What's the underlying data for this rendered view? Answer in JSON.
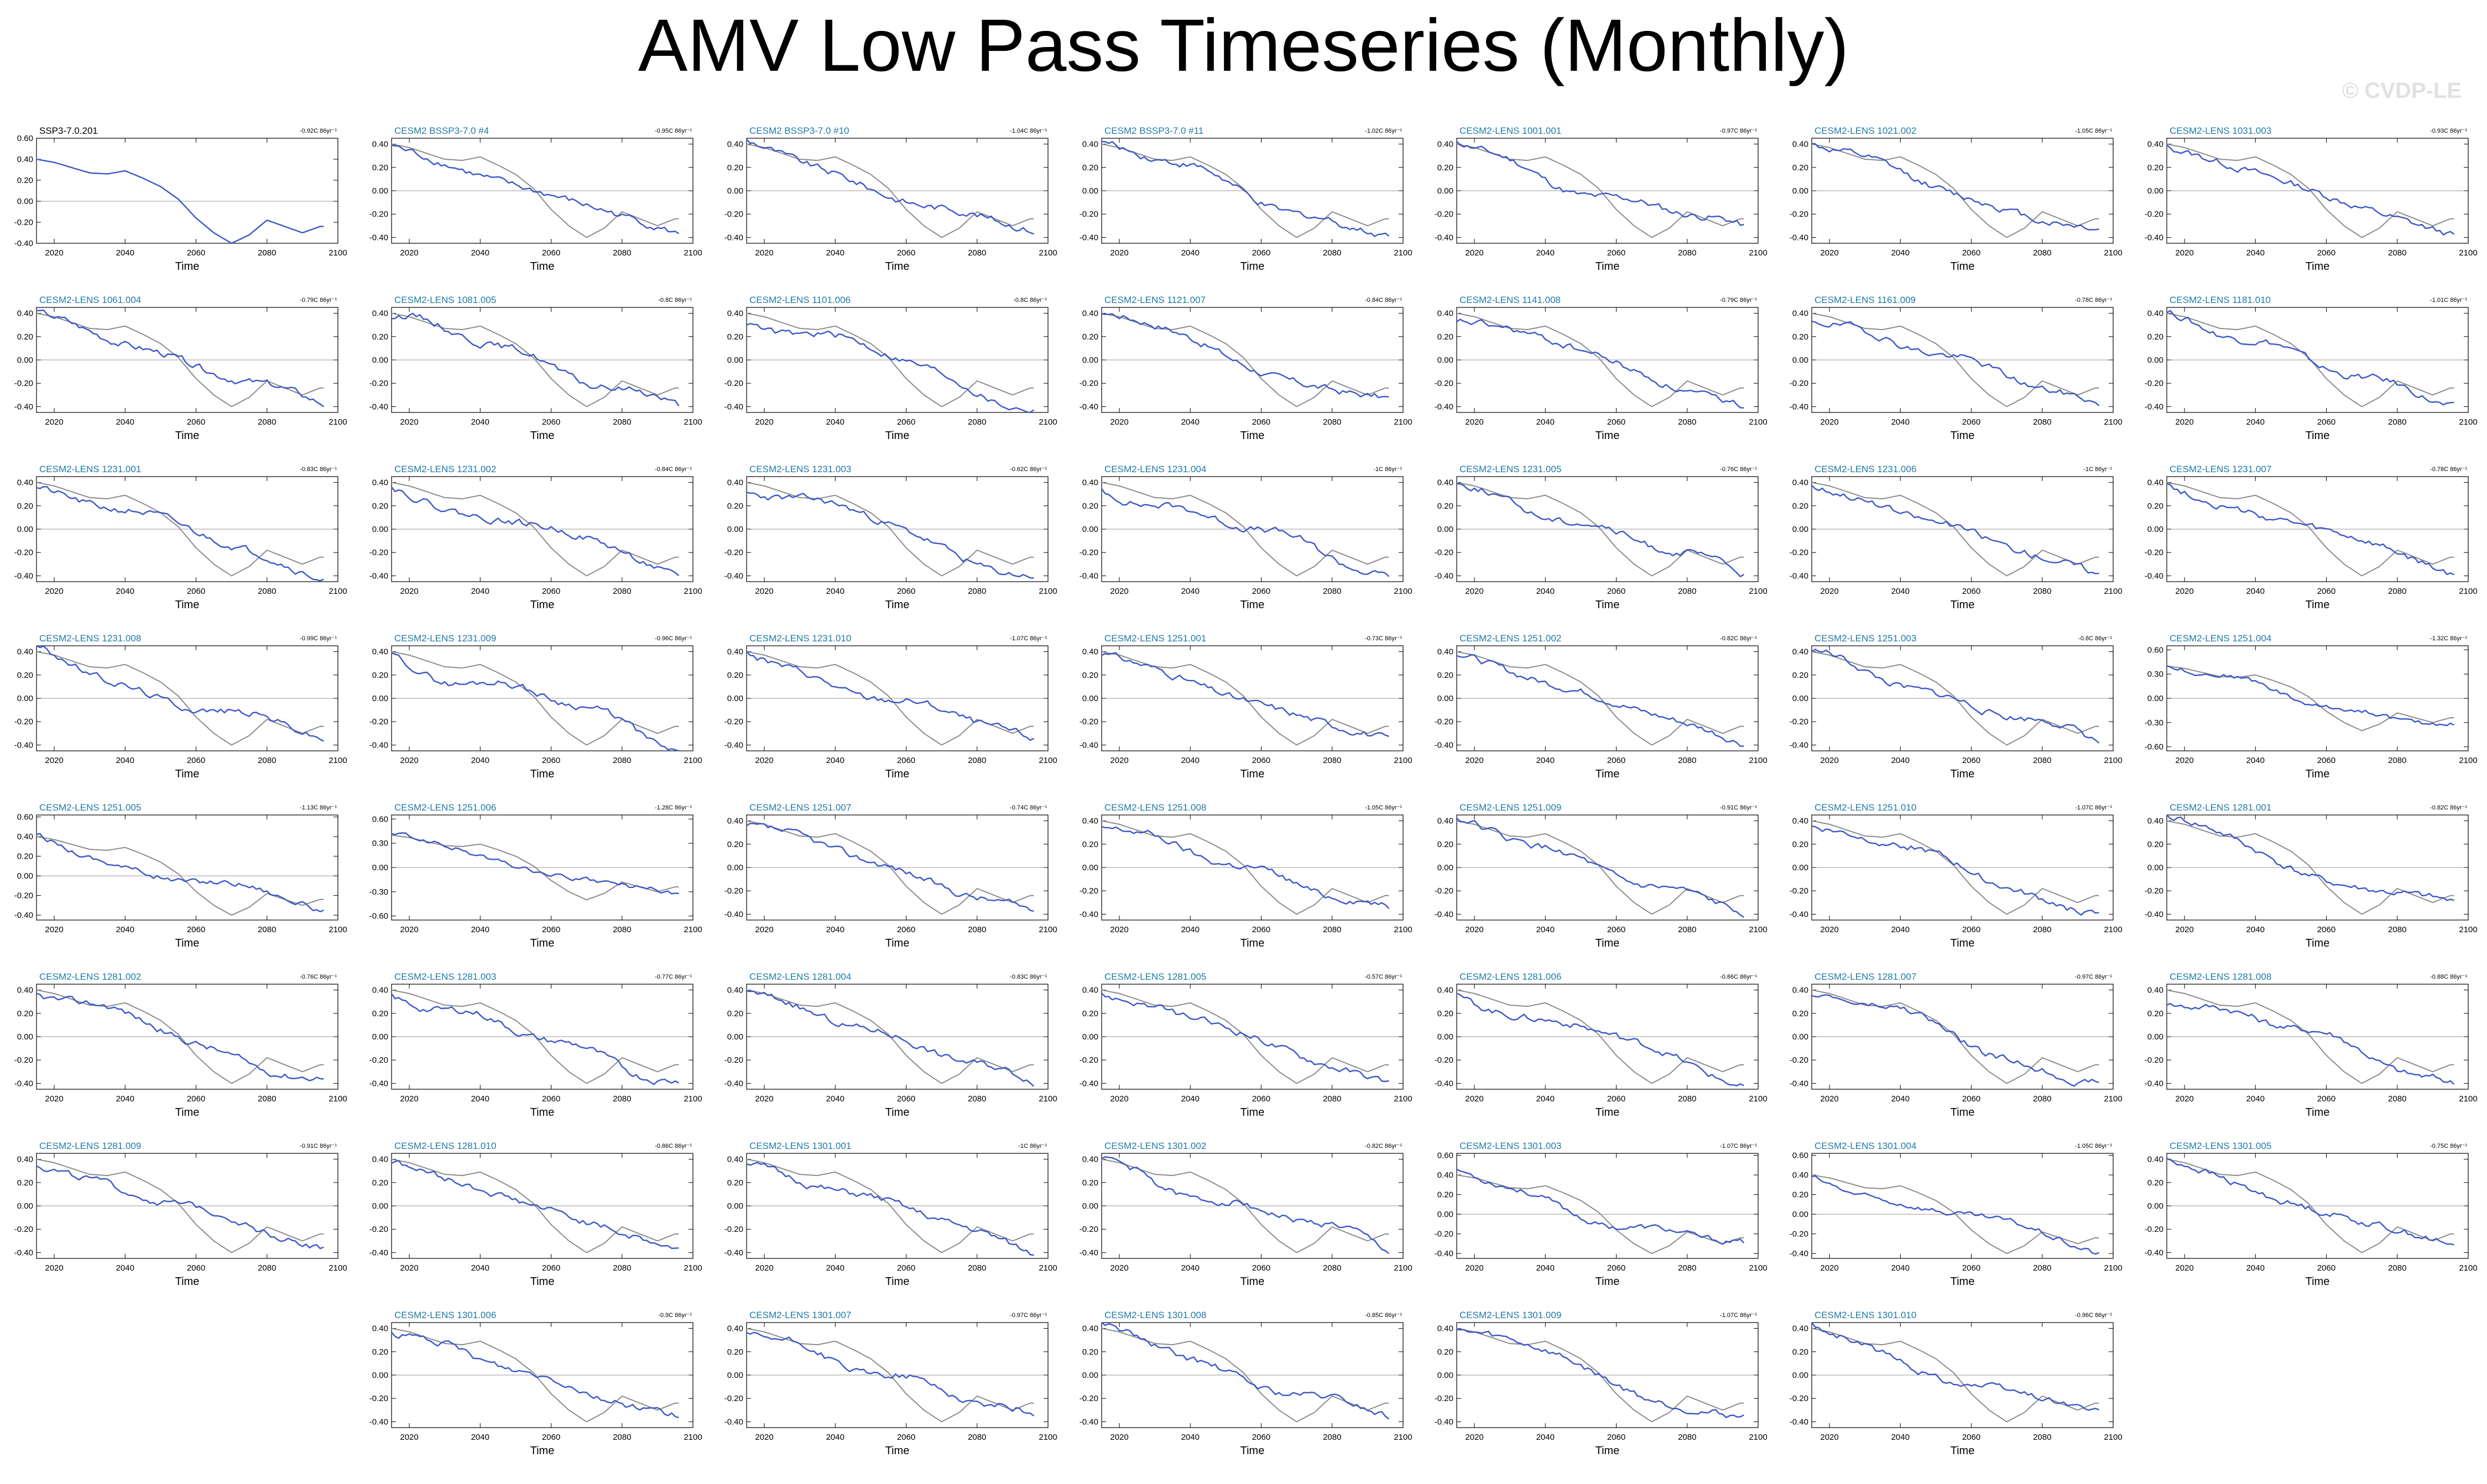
{
  "title": "AMV Low Pass Timeseries (Monthly)",
  "watermark": "© CVDP-LE",
  "colors": {
    "member_line": "#3a56c9",
    "obs_line": "#8c8c8c",
    "zero_line": "#9a9a9a",
    "title_member": "#1f7aa6",
    "title_obs": "#000000"
  },
  "chart_data": {
    "type": "line",
    "xlabel": "Time",
    "xlim": [
      2015,
      2100
    ],
    "x_ticks": [
      2020,
      2040,
      2060,
      2080,
      2100
    ],
    "series_note": "blue = ensemble member, gray = reference run SSP3-7.0.201",
    "panels": [
      {
        "title": "SSP3-7.0.201",
        "trend": "-0.92C 86yr⁻¹",
        "y_ticks": [
          "0.60",
          "0.40",
          "0.20",
          "0.00",
          "-0.20",
          "-0.40"
        ],
        "ylim": [
          -0.4,
          0.6
        ],
        "is_reference": true
      },
      {
        "title": "CESM2 BSSP3-7.0 #4",
        "trend": "-0.95C 86yr⁻¹",
        "y_ticks": [
          "0.40",
          "0.20",
          "0.00",
          "-0.20",
          "-0.40"
        ],
        "ylim": [
          -0.45,
          0.45
        ]
      },
      {
        "title": "CESM2 BSSP3-7.0 #10",
        "trend": "-1.04C 86yr⁻¹",
        "y_ticks": [
          "0.40",
          "0.20",
          "0.00",
          "-0.20",
          "-0.40"
        ],
        "ylim": [
          -0.45,
          0.45
        ]
      },
      {
        "title": "CESM2 BSSP3-7.0 #11",
        "trend": "-1.02C 86yr⁻¹",
        "y_ticks": [
          "0.40",
          "0.20",
          "0.00",
          "-0.20",
          "-0.40"
        ],
        "ylim": [
          -0.45,
          0.45
        ]
      },
      {
        "title": "CESM2-LENS 1001.001",
        "trend": "-0.97C 86yr⁻¹",
        "y_ticks": [
          "0.40",
          "0.20",
          "0.00",
          "-0.20",
          "-0.40"
        ],
        "ylim": [
          -0.45,
          0.45
        ]
      },
      {
        "title": "CESM2-LENS 1021.002",
        "trend": "-1.05C 86yr⁻¹",
        "y_ticks": [
          "0.40",
          "0.20",
          "0.00",
          "-0.20",
          "-0.40"
        ],
        "ylim": [
          -0.45,
          0.45
        ]
      },
      {
        "title": "CESM2-LENS 1031.003",
        "trend": "-0.93C 86yr⁻¹",
        "y_ticks": [
          "0.40",
          "0.20",
          "0.00",
          "-0.20",
          "-0.40"
        ],
        "ylim": [
          -0.45,
          0.45
        ]
      },
      {
        "title": "CESM2-LENS 1061.004",
        "trend": "-0.79C 86yr⁻¹",
        "y_ticks": [
          "0.40",
          "0.20",
          "0.00",
          "-0.20",
          "-0.40"
        ],
        "ylim": [
          -0.45,
          0.45
        ]
      },
      {
        "title": "CESM2-LENS 1081.005",
        "trend": "-0.8C 86yr⁻¹",
        "y_ticks": [
          "0.40",
          "0.20",
          "0.00",
          "-0.20",
          "-0.40"
        ],
        "ylim": [
          -0.45,
          0.45
        ]
      },
      {
        "title": "CESM2-LENS 1101.006",
        "trend": "-0.8C 86yr⁻¹",
        "y_ticks": [
          "0.40",
          "0.20",
          "0.00",
          "-0.20",
          "-0.40"
        ],
        "ylim": [
          -0.45,
          0.45
        ]
      },
      {
        "title": "CESM2-LENS 1121.007",
        "trend": "-0.84C 86yr⁻¹",
        "y_ticks": [
          "0.40",
          "0.20",
          "0.00",
          "-0.20",
          "-0.40"
        ],
        "ylim": [
          -0.45,
          0.45
        ]
      },
      {
        "title": "CESM2-LENS 1141.008",
        "trend": "-0.79C 86yr⁻¹",
        "y_ticks": [
          "0.40",
          "0.20",
          "0.00",
          "-0.20",
          "-0.40"
        ],
        "ylim": [
          -0.45,
          0.45
        ]
      },
      {
        "title": "CESM2-LENS 1161.009",
        "trend": "-0.78C 86yr⁻¹",
        "y_ticks": [
          "0.40",
          "0.20",
          "0.00",
          "-0.20",
          "-0.40"
        ],
        "ylim": [
          -0.45,
          0.45
        ]
      },
      {
        "title": "CESM2-LENS 1181.010",
        "trend": "-1.01C 86yr⁻¹",
        "y_ticks": [
          "0.40",
          "0.20",
          "0.00",
          "-0.20",
          "-0.40"
        ],
        "ylim": [
          -0.45,
          0.45
        ]
      },
      {
        "title": "CESM2-LENS 1231.001",
        "trend": "-0.83C 86yr⁻¹",
        "y_ticks": [
          "0.40",
          "0.20",
          "0.00",
          "-0.20",
          "-0.40"
        ],
        "ylim": [
          -0.45,
          0.45
        ]
      },
      {
        "title": "CESM2-LENS 1231.002",
        "trend": "-0.84C 86yr⁻¹",
        "y_ticks": [
          "0.40",
          "0.20",
          "0.00",
          "-0.20",
          "-0.40"
        ],
        "ylim": [
          -0.45,
          0.45
        ]
      },
      {
        "title": "CESM2-LENS 1231.003",
        "trend": "-0.62C 86yr⁻¹",
        "y_ticks": [
          "0.40",
          "0.20",
          "0.00",
          "-0.20",
          "-0.40"
        ],
        "ylim": [
          -0.45,
          0.45
        ]
      },
      {
        "title": "CESM2-LENS 1231.004",
        "trend": "-1C 86yr⁻¹",
        "y_ticks": [
          "0.40",
          "0.20",
          "0.00",
          "-0.20",
          "-0.40"
        ],
        "ylim": [
          -0.45,
          0.45
        ]
      },
      {
        "title": "CESM2-LENS 1231.005",
        "trend": "-0.76C 86yr⁻¹",
        "y_ticks": [
          "0.40",
          "0.20",
          "0.00",
          "-0.20",
          "-0.40"
        ],
        "ylim": [
          -0.45,
          0.45
        ]
      },
      {
        "title": "CESM2-LENS 1231.006",
        "trend": "-1C 86yr⁻¹",
        "y_ticks": [
          "0.40",
          "0.20",
          "0.00",
          "-0.20",
          "-0.40"
        ],
        "ylim": [
          -0.45,
          0.45
        ]
      },
      {
        "title": "CESM2-LENS 1231.007",
        "trend": "-0.78C 86yr⁻¹",
        "y_ticks": [
          "0.40",
          "0.20",
          "0.00",
          "-0.20",
          "-0.40"
        ],
        "ylim": [
          -0.45,
          0.45
        ]
      },
      {
        "title": "CESM2-LENS 1231.008",
        "trend": "-0.99C 86yr⁻¹",
        "y_ticks": [
          "0.40",
          "0.20",
          "0.00",
          "-0.20",
          "-0.40"
        ],
        "ylim": [
          -0.45,
          0.45
        ]
      },
      {
        "title": "CESM2-LENS 1231.009",
        "trend": "-0.96C 86yr⁻¹",
        "y_ticks": [
          "0.40",
          "0.20",
          "0.00",
          "-0.20",
          "-0.40"
        ],
        "ylim": [
          -0.45,
          0.45
        ]
      },
      {
        "title": "CESM2-LENS 1231.010",
        "trend": "-1.07C 86yr⁻¹",
        "y_ticks": [
          "0.40",
          "0.20",
          "0.00",
          "-0.20",
          "-0.40"
        ],
        "ylim": [
          -0.45,
          0.45
        ]
      },
      {
        "title": "CESM2-LENS 1251.001",
        "trend": "-0.73C 86yr⁻¹",
        "y_ticks": [
          "0.40",
          "0.20",
          "0.00",
          "-0.20",
          "-0.40"
        ],
        "ylim": [
          -0.45,
          0.45
        ]
      },
      {
        "title": "CESM2-LENS 1251.002",
        "trend": "-0.82C 86yr⁻¹",
        "y_ticks": [
          "0.40",
          "0.20",
          "0.00",
          "-0.20",
          "-0.40"
        ],
        "ylim": [
          -0.45,
          0.45
        ]
      },
      {
        "title": "CESM2-LENS 1251.003",
        "trend": "-0.8C 86yr⁻¹",
        "y_ticks": [
          "0.40",
          "0.20",
          "0.00",
          "-0.20",
          "-0.40"
        ],
        "ylim": [
          -0.45,
          0.45
        ]
      },
      {
        "title": "CESM2-LENS 1251.004",
        "trend": "-1.32C 86yr⁻¹",
        "y_ticks": [
          "0.60",
          "0.30",
          "0.00",
          "-0.30",
          "-0.60"
        ],
        "ylim": [
          -0.65,
          0.65
        ]
      },
      {
        "title": "CESM2-LENS 1251.005",
        "trend": "-1.13C 86yr⁻¹",
        "y_ticks": [
          "0.60",
          "0.40",
          "0.20",
          "0.00",
          "-0.20",
          "-0.40"
        ],
        "ylim": [
          -0.45,
          0.62
        ]
      },
      {
        "title": "CESM2-LENS 1251.006",
        "trend": "-1.28C 86yr⁻¹",
        "y_ticks": [
          "0.60",
          "0.30",
          "0.00",
          "-0.30",
          "-0.60"
        ],
        "ylim": [
          -0.65,
          0.65
        ]
      },
      {
        "title": "CESM2-LENS 1251.007",
        "trend": "-0.74C 86yr⁻¹",
        "y_ticks": [
          "0.40",
          "0.20",
          "0.00",
          "-0.20",
          "-0.40"
        ],
        "ylim": [
          -0.45,
          0.45
        ]
      },
      {
        "title": "CESM2-LENS 1251.008",
        "trend": "-1.05C 86yr⁻¹",
        "y_ticks": [
          "0.40",
          "0.20",
          "0.00",
          "-0.20",
          "-0.40"
        ],
        "ylim": [
          -0.45,
          0.45
        ]
      },
      {
        "title": "CESM2-LENS 1251.009",
        "trend": "-0.91C 86yr⁻¹",
        "y_ticks": [
          "0.40",
          "0.20",
          "0.00",
          "-0.20",
          "-0.40"
        ],
        "ylim": [
          -0.45,
          0.45
        ]
      },
      {
        "title": "CESM2-LENS 1251.010",
        "trend": "-1.07C 86yr⁻¹",
        "y_ticks": [
          "0.40",
          "0.20",
          "0.00",
          "-0.20",
          "-0.40"
        ],
        "ylim": [
          -0.45,
          0.45
        ]
      },
      {
        "title": "CESM2-LENS 1281.001",
        "trend": "-0.82C 86yr⁻¹",
        "y_ticks": [
          "0.40",
          "0.20",
          "0.00",
          "-0.20",
          "-0.40"
        ],
        "ylim": [
          -0.45,
          0.45
        ]
      },
      {
        "title": "CESM2-LENS 1281.002",
        "trend": "-0.76C 86yr⁻¹",
        "y_ticks": [
          "0.40",
          "0.20",
          "0.00",
          "-0.20",
          "-0.40"
        ],
        "ylim": [
          -0.45,
          0.45
        ]
      },
      {
        "title": "CESM2-LENS 1281.003",
        "trend": "-0.77C 86yr⁻¹",
        "y_ticks": [
          "0.40",
          "0.20",
          "0.00",
          "-0.20",
          "-0.40"
        ],
        "ylim": [
          -0.45,
          0.45
        ]
      },
      {
        "title": "CESM2-LENS 1281.004",
        "trend": "-0.83C 86yr⁻¹",
        "y_ticks": [
          "0.40",
          "0.20",
          "0.00",
          "-0.20",
          "-0.40"
        ],
        "ylim": [
          -0.45,
          0.45
        ]
      },
      {
        "title": "CESM2-LENS 1281.005",
        "trend": "-0.57C 86yr⁻¹",
        "y_ticks": [
          "0.40",
          "0.20",
          "0.00",
          "-0.20",
          "-0.40"
        ],
        "ylim": [
          -0.45,
          0.45
        ]
      },
      {
        "title": "CESM2-LENS 1281.006",
        "trend": "-0.86C 86yr⁻¹",
        "y_ticks": [
          "0.40",
          "0.20",
          "0.00",
          "-0.20",
          "-0.40"
        ],
        "ylim": [
          -0.45,
          0.45
        ]
      },
      {
        "title": "CESM2-LENS 1281.007",
        "trend": "-0.97C 86yr⁻¹",
        "y_ticks": [
          "0.40",
          "0.20",
          "0.00",
          "-0.20",
          "-0.40"
        ],
        "ylim": [
          -0.45,
          0.45
        ]
      },
      {
        "title": "CESM2-LENS 1281.008",
        "trend": "-0.88C 86yr⁻¹",
        "y_ticks": [
          "0.40",
          "0.20",
          "0.00",
          "-0.20",
          "-0.40"
        ],
        "ylim": [
          -0.45,
          0.45
        ]
      },
      {
        "title": "CESM2-LENS 1281.009",
        "trend": "-0.91C 86yr⁻¹",
        "y_ticks": [
          "0.40",
          "0.20",
          "0.00",
          "-0.20",
          "-0.40"
        ],
        "ylim": [
          -0.45,
          0.45
        ]
      },
      {
        "title": "CESM2-LENS 1281.010",
        "trend": "-0.86C 86yr⁻¹",
        "y_ticks": [
          "0.40",
          "0.20",
          "0.00",
          "-0.20",
          "-0.40"
        ],
        "ylim": [
          -0.45,
          0.45
        ]
      },
      {
        "title": "CESM2-LENS 1301.001",
        "trend": "-1C 86yr⁻¹",
        "y_ticks": [
          "0.40",
          "0.20",
          "0.00",
          "-0.20",
          "-0.40"
        ],
        "ylim": [
          -0.45,
          0.45
        ]
      },
      {
        "title": "CESM2-LENS 1301.002",
        "trend": "-0.82C 86yr⁻¹",
        "y_ticks": [
          "0.40",
          "0.20",
          "0.00",
          "-0.20",
          "-0.40"
        ],
        "ylim": [
          -0.45,
          0.45
        ]
      },
      {
        "title": "CESM2-LENS 1301.003",
        "trend": "-1.07C 86yr⁻¹",
        "y_ticks": [
          "0.60",
          "0.40",
          "0.20",
          "0.00",
          "-0.20",
          "-0.40"
        ],
        "ylim": [
          -0.45,
          0.62
        ]
      },
      {
        "title": "CESM2-LENS 1301.004",
        "trend": "-1.05C 86yr⁻¹",
        "y_ticks": [
          "0.60",
          "0.40",
          "0.20",
          "0.00",
          "-0.20",
          "-0.40"
        ],
        "ylim": [
          -0.45,
          0.62
        ]
      },
      {
        "title": "CESM2-LENS 1301.005",
        "trend": "-0.75C 86yr⁻¹",
        "y_ticks": [
          "0.40",
          "0.20",
          "0.00",
          "-0.20",
          "-0.40"
        ],
        "ylim": [
          -0.45,
          0.45
        ]
      },
      {
        "title": "CESM2-LENS 1301.006",
        "trend": "-0.9C 86yr⁻¹",
        "y_ticks": [
          "0.40",
          "0.20",
          "0.00",
          "-0.20",
          "-0.40"
        ],
        "ylim": [
          -0.45,
          0.45
        ]
      },
      {
        "title": "CESM2-LENS 1301.007",
        "trend": "-0.97C 86yr⁻¹",
        "y_ticks": [
          "0.40",
          "0.20",
          "0.00",
          "-0.20",
          "-0.40"
        ],
        "ylim": [
          -0.45,
          0.45
        ]
      },
      {
        "title": "CESM2-LENS 1301.008",
        "trend": "-0.85C 86yr⁻¹",
        "y_ticks": [
          "0.40",
          "0.20",
          "0.00",
          "-0.20",
          "-0.40"
        ],
        "ylim": [
          -0.45,
          0.45
        ]
      },
      {
        "title": "CESM2-LENS 1301.009",
        "trend": "-1.07C 86yr⁻¹",
        "y_ticks": [
          "0.40",
          "0.20",
          "0.00",
          "-0.20",
          "-0.40"
        ],
        "ylim": [
          -0.45,
          0.45
        ]
      },
      {
        "title": "CESM2-LENS 1301.010",
        "trend": "-0.96C 86yr⁻¹",
        "y_ticks": [
          "0.40",
          "0.20",
          "0.00",
          "-0.20",
          "-0.40"
        ],
        "ylim": [
          -0.45,
          0.45
        ]
      }
    ],
    "reference_series": {
      "name": "SSP3-7.0.201",
      "x": [
        2015,
        2020,
        2025,
        2030,
        2035,
        2040,
        2045,
        2050,
        2055,
        2060,
        2065,
        2070,
        2075,
        2080,
        2085,
        2090,
        2095
      ],
      "y": [
        0.4,
        0.37,
        0.32,
        0.27,
        0.26,
        0.29,
        0.22,
        0.14,
        0.02,
        -0.16,
        -0.3,
        -0.4,
        -0.32,
        -0.18,
        -0.24,
        -0.3,
        -0.24
      ]
    }
  }
}
